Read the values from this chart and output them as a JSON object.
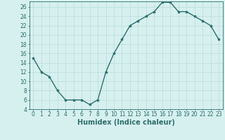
{
  "x": [
    0,
    1,
    2,
    3,
    4,
    5,
    6,
    7,
    8,
    9,
    10,
    11,
    12,
    13,
    14,
    15,
    16,
    17,
    18,
    19,
    20,
    21,
    22,
    23
  ],
  "y": [
    15,
    12,
    11,
    8,
    6,
    6,
    6,
    5,
    6,
    12,
    16,
    19,
    22,
    23,
    24,
    25,
    27,
    27,
    25,
    25,
    24,
    23,
    22,
    19
  ],
  "line_color": "#2d6e6e",
  "marker": "*",
  "marker_size": 3,
  "bg_color": "#d6f0ef",
  "grid_color": "#b8dbd9",
  "xlabel": "Humidex (Indice chaleur)",
  "ylim_min": 4,
  "ylim_max": 27,
  "xlim_min": -0.5,
  "xlim_max": 23.5,
  "yticks": [
    4,
    6,
    8,
    10,
    12,
    14,
    16,
    18,
    20,
    22,
    24,
    26
  ],
  "xticks": [
    0,
    1,
    2,
    3,
    4,
    5,
    6,
    7,
    8,
    9,
    10,
    11,
    12,
    13,
    14,
    15,
    16,
    17,
    18,
    19,
    20,
    21,
    22,
    23
  ],
  "tick_color": "#2d6e6e",
  "label_fontsize": 5.5,
  "axis_label_fontsize": 7,
  "spine_color": "#2d6e6e",
  "line_width": 1.0
}
